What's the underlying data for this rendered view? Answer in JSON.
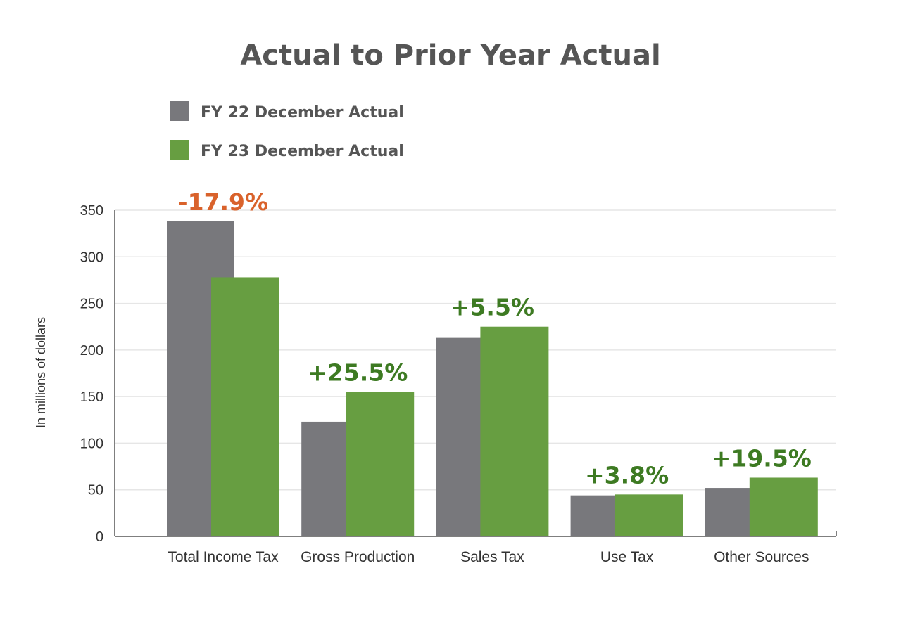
{
  "chart_data": {
    "type": "bar",
    "title": "Actual to Prior Year Actual",
    "xlabel": "",
    "ylabel": "In millions of dollars",
    "ylim": [
      0,
      350
    ],
    "yticks": [
      0,
      50,
      100,
      150,
      200,
      250,
      300,
      350
    ],
    "grid": true,
    "legend_placement": "top-left",
    "categories": [
      "Total Income Tax",
      "Gross Production",
      "Sales Tax",
      "Use Tax",
      "Other Sources"
    ],
    "series": [
      {
        "name": "FY 22 December Actual",
        "color": "#78787c",
        "values": [
          338,
          123,
          213,
          44,
          52
        ]
      },
      {
        "name": "FY 23 December Actual",
        "color": "#679e41",
        "values": [
          278,
          155,
          225,
          45,
          63
        ]
      }
    ],
    "annotations": [
      "-17.9%",
      "+25.5%",
      "+5.5%",
      "+3.8%",
      "+19.5%"
    ],
    "annotation_colors": {
      "negative": "#d9622b",
      "positive": "#3d7a22"
    }
  }
}
